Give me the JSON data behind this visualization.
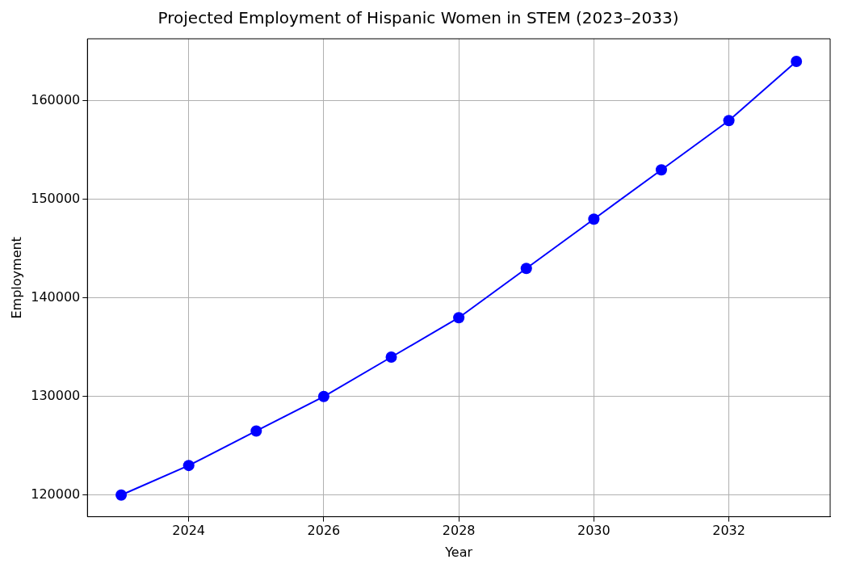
{
  "chart_data": {
    "type": "line",
    "title": "Projected Employment of Hispanic Women in STEM (2023–2033)",
    "xlabel": "Year",
    "ylabel": "Employment",
    "x": [
      2023,
      2024,
      2025,
      2026,
      2027,
      2028,
      2029,
      2030,
      2031,
      2032,
      2033
    ],
    "series": [
      {
        "color": "#0000ff",
        "values": [
          120000,
          123000,
          126500,
          130000,
          134000,
          138000,
          143000,
          148000,
          153000,
          158000,
          164000
        ]
      }
    ],
    "xlim": [
      2022.5,
      2033.5
    ],
    "xticks": [
      2024,
      2026,
      2028,
      2030,
      2032
    ],
    "ylim": [
      117800,
      166300
    ],
    "yticks": [
      120000,
      130000,
      140000,
      150000,
      160000
    ],
    "grid": true,
    "marker": "circle",
    "line_style": "solid"
  }
}
